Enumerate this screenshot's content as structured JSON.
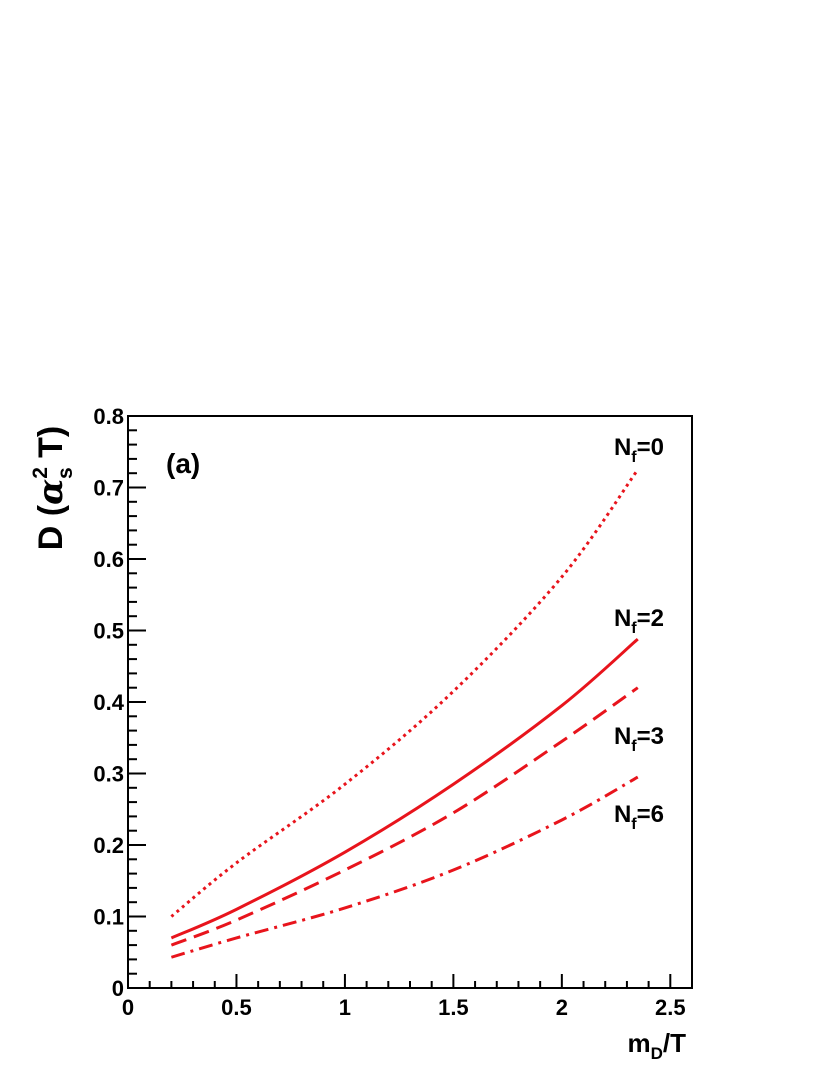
{
  "chart_data": {
    "type": "line",
    "panel_label": "(a)",
    "xlabel": {
      "main": "m",
      "sub": "D",
      "tail": "/T"
    },
    "ylabel": {
      "prefix": "D (",
      "alpha": "α",
      "sub": "s",
      "sup": "2",
      "suffix": " T)"
    },
    "xlim": [
      0,
      2.6
    ],
    "ylim": [
      0,
      0.8
    ],
    "xticks": [
      "0",
      "0.5",
      "1",
      "1.5",
      "2",
      "2.5"
    ],
    "xtick_values": [
      0,
      0.5,
      1,
      1.5,
      2,
      2.5
    ],
    "yticks": [
      "0",
      "0.1",
      "0.2",
      "0.3",
      "0.4",
      "0.5",
      "0.6",
      "0.7",
      "0.8"
    ],
    "ytick_values": [
      0,
      0.1,
      0.2,
      0.3,
      0.4,
      0.5,
      0.6,
      0.7,
      0.8
    ],
    "grid": false,
    "color": "#e8141c",
    "series": [
      {
        "label_main": "N",
        "label_sub": "f",
        "label_tail": "=0",
        "style": "dotted",
        "x": [
          0.2,
          0.5,
          1.0,
          1.5,
          2.0,
          2.35
        ],
        "y": [
          0.1,
          0.175,
          0.285,
          0.415,
          0.575,
          0.725
        ]
      },
      {
        "label_main": "N",
        "label_sub": "f",
        "label_tail": "=2",
        "style": "solid",
        "x": [
          0.2,
          0.5,
          1.0,
          1.5,
          2.0,
          2.35
        ],
        "y": [
          0.07,
          0.11,
          0.19,
          0.285,
          0.395,
          0.488
        ]
      },
      {
        "label_main": "N",
        "label_sub": "f",
        "label_tail": "=3",
        "style": "dashed",
        "x": [
          0.2,
          0.5,
          1.0,
          1.5,
          2.0,
          2.35
        ],
        "y": [
          0.06,
          0.095,
          0.165,
          0.245,
          0.345,
          0.42
        ]
      },
      {
        "label_main": "N",
        "label_sub": "f",
        "label_tail": "=6",
        "style": "dashdot",
        "x": [
          0.2,
          0.5,
          1.0,
          1.5,
          2.0,
          2.35
        ],
        "y": [
          0.043,
          0.07,
          0.112,
          0.165,
          0.235,
          0.295
        ]
      }
    ]
  }
}
